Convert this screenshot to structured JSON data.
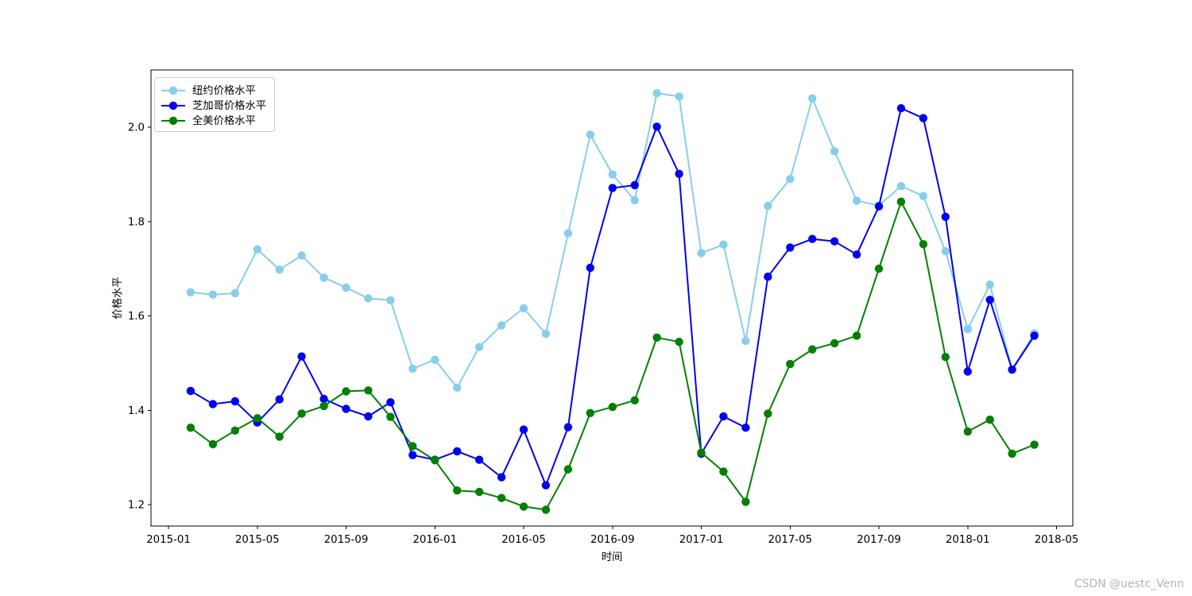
{
  "watermark": "CSDN @uestc_Venn",
  "chart_data": {
    "type": "line",
    "title": "",
    "xlabel": "时间",
    "ylabel": "价格水平",
    "legend_position": "upper left",
    "grid": false,
    "axis_color": "#000000",
    "ylim": [
      1.155,
      2.121
    ],
    "yticks": [
      1.2,
      1.4,
      1.6,
      1.8,
      2.0
    ],
    "xticks": [
      "2015-01",
      "2015-05",
      "2015-09",
      "2016-01",
      "2016-05",
      "2016-09",
      "2017-01",
      "2017-05",
      "2017-09",
      "2018-01",
      "2018-05"
    ],
    "x": [
      "2015-02",
      "2015-03",
      "2015-04",
      "2015-05",
      "2015-06",
      "2015-07",
      "2015-08",
      "2015-09",
      "2015-10",
      "2015-11",
      "2015-12",
      "2016-01",
      "2016-02",
      "2016-03",
      "2016-04",
      "2016-05",
      "2016-06",
      "2016-07",
      "2016-08",
      "2016-09",
      "2016-10",
      "2016-11",
      "2016-12",
      "2017-01",
      "2017-02",
      "2017-03",
      "2017-04",
      "2017-05",
      "2017-06",
      "2017-07",
      "2017-08",
      "2017-09",
      "2017-10",
      "2017-11",
      "2017-12",
      "2018-01",
      "2018-02",
      "2018-03",
      "2018-04"
    ],
    "series": [
      {
        "name": "纽约价格水平",
        "color": "#87CEEB",
        "values": [
          1.65,
          1.645,
          1.648,
          1.741,
          1.698,
          1.728,
          1.681,
          1.66,
          1.637,
          1.633,
          1.488,
          1.507,
          1.448,
          1.534,
          1.58,
          1.616,
          1.562,
          1.775,
          1.984,
          1.9,
          1.845,
          2.072,
          2.065,
          1.733,
          1.751,
          1.547,
          1.833,
          1.89,
          2.061,
          1.949,
          1.844,
          1.834,
          1.875,
          1.854,
          1.737,
          1.572,
          1.666,
          1.487,
          1.563
        ]
      },
      {
        "name": "芝加哥价格水平",
        "color": "#0000EE",
        "values": [
          1.441,
          1.413,
          1.419,
          1.374,
          1.423,
          1.514,
          1.424,
          1.403,
          1.387,
          1.417,
          1.305,
          1.295,
          1.313,
          1.295,
          1.258,
          1.359,
          1.241,
          1.364,
          1.702,
          1.871,
          1.877,
          2.001,
          1.901,
          1.308,
          1.387,
          1.363,
          1.683,
          1.745,
          1.763,
          1.758,
          1.73,
          1.832,
          2.04,
          2.019,
          1.81,
          1.482,
          1.634,
          1.486,
          1.558
        ]
      },
      {
        "name": "全美价格水平",
        "color": "#008000",
        "values": [
          1.363,
          1.328,
          1.357,
          1.383,
          1.344,
          1.393,
          1.409,
          1.44,
          1.442,
          1.386,
          1.324,
          1.294,
          1.23,
          1.227,
          1.214,
          1.196,
          1.189,
          1.275,
          1.394,
          1.407,
          1.421,
          1.554,
          1.545,
          1.31,
          1.27,
          1.206,
          1.393,
          1.498,
          1.529,
          1.542,
          1.558,
          1.7,
          1.842,
          1.752,
          1.513,
          1.355,
          1.38,
          1.308,
          1.327
        ]
      }
    ]
  }
}
